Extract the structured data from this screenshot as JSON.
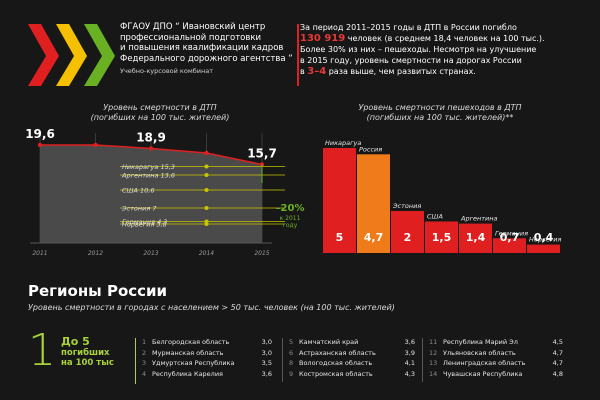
{
  "header": {
    "org_lines": [
      "ФГАОУ ДПО “ Ивановский центр",
      "профессиональной подготовки",
      "и повышения квалификации кадров",
      "Федерального дорожного агентства ”"
    ],
    "org_sub": "Учебно-курсовой комбинат",
    "stat": {
      "l1_pre": "За период 2011–2015 годы в ДТП в России погибло",
      "l2_num": "130 919",
      "l2_post": " человек (в среднем 18,4 человек на 100 тыс.).",
      "l3": "Более 30% из них – пешеходы. Несмотря на улучшение",
      "l4": "в 2015 году, уровень смертности на дорогах России",
      "l5_pre": "в ",
      "l5_num": "3–4",
      "l5_post": " раза выше, чем развитых странах."
    },
    "logo_colors": [
      "#e02020",
      "#f5c000",
      "#6ab023"
    ]
  },
  "chart_data": [
    {
      "type": "area",
      "title": "Уровень смертности в ДТП",
      "subtitle": "(погибших на 100 тыс. жителей)",
      "x": [
        2011,
        2012,
        2013,
        2014,
        2015
      ],
      "values": [
        19.6,
        19.6,
        18.9,
        18.0,
        15.7
      ],
      "value_labels": [
        "19,6",
        "",
        "18,9",
        "",
        "15,7"
      ],
      "ylim": [
        0,
        22
      ],
      "benchmarks": [
        {
          "name": "Никарагуа",
          "label": "15,3",
          "value": 15.3
        },
        {
          "name": "Аргентина",
          "label": "13,6",
          "value": 13.6
        },
        {
          "name": "США",
          "label": "10,6",
          "value": 10.6
        },
        {
          "name": "Эстония",
          "label": "7",
          "value": 7
        },
        {
          "name": "Германия",
          "label": "4,3",
          "value": 4.3
        },
        {
          "name": "Норвегия",
          "label": "3,8",
          "value": 3.8
        }
      ],
      "annotation": {
        "value": "–20%",
        "text1": "к 2011",
        "text2": "году"
      },
      "colors": {
        "line": "#e02020",
        "fill": "#4a4a4a",
        "benchmark": "#c8c400",
        "annotation": "#6ab023"
      }
    },
    {
      "type": "bar",
      "title": "Уровень смертности пешеходов в ДТП",
      "subtitle": "(погибших на 100 тыс. жителей)**",
      "categories": [
        "Никарагуа",
        "Россия",
        "Эстония",
        "США",
        "Аргентина",
        "Германия",
        "Норвегия"
      ],
      "values": [
        5,
        4.7,
        2,
        1.5,
        1.4,
        0.7,
        0.4
      ],
      "value_labels": [
        "5",
        "4,7",
        "2",
        "1,5",
        "1,4",
        "0,7",
        "0,4"
      ],
      "ylim": [
        0,
        5
      ],
      "colors": {
        "default": "#e02020",
        "highlight": "#f07b1a",
        "highlight_category": "Россия"
      }
    }
  ],
  "regions": {
    "title": "Регионы России",
    "subtitle": "Уровень смертности в городах с населением > 50 тыс. человек (на 100 тыс. жителей)",
    "level_number": "1",
    "level_label_line1": "До 5",
    "level_label_line2": "погибших",
    "level_label_line3": "на 100 тыс",
    "columns": [
      [
        {
          "n": "1",
          "name": "Белгородская область",
          "v": "3,0"
        },
        {
          "n": "2",
          "name": "Мурманская область",
          "v": "3,0"
        },
        {
          "n": "3",
          "name": "Удмуртская Республика",
          "v": "3,5"
        },
        {
          "n": "4",
          "name": "Республика Карелия",
          "v": "3,6"
        }
      ],
      [
        {
          "n": "5",
          "name": "Камчатский край",
          "v": "3,6"
        },
        {
          "n": "6",
          "name": "Астраханская область",
          "v": "3,9"
        },
        {
          "n": "8",
          "name": "Вологодская область",
          "v": "4,1"
        },
        {
          "n": "9",
          "name": "Костромская область",
          "v": "4,3"
        }
      ],
      [
        {
          "n": "11",
          "name": "Республика Марий Эл",
          "v": "4,5"
        },
        {
          "n": "12",
          "name": "Ульяновская область",
          "v": "4,7"
        },
        {
          "n": "13",
          "name": "Ленинградская область",
          "v": "4,7"
        },
        {
          "n": "14",
          "name": "Чувашская Республика",
          "v": "4,8"
        }
      ]
    ]
  }
}
